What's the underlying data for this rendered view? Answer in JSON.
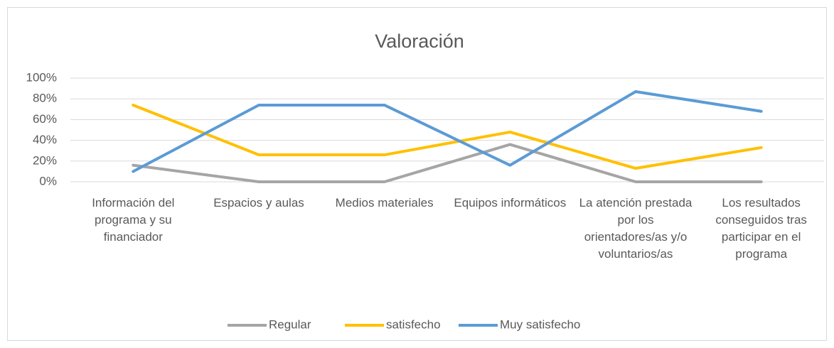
{
  "chart_data": {
    "type": "line",
    "title": "Valoración",
    "categories": [
      "Información del programa y su financiador",
      "Espacios y aulas",
      "Medios materiales",
      "Equipos informáticos",
      "La atención prestada por los orientadores/as y/o voluntarios/as",
      "Los resultados conseguidos tras participar en el programa"
    ],
    "series": [
      {
        "name": "Regular",
        "color": "#a5a5a5",
        "values": [
          16,
          0,
          0,
          36,
          0,
          0
        ]
      },
      {
        "name": "satisfecho",
        "color": "#ffc000",
        "values": [
          74,
          26,
          26,
          48,
          13,
          33
        ]
      },
      {
        "name": "Muy satisfecho",
        "color": "#5b9bd5",
        "values": [
          10,
          74,
          74,
          16,
          87,
          68
        ]
      }
    ],
    "ylim": [
      0,
      100
    ],
    "yticks": [
      {
        "value": 0,
        "label": "0%"
      },
      {
        "value": 20,
        "label": "20%"
      },
      {
        "value": 40,
        "label": "40%"
      },
      {
        "value": 60,
        "label": "60%"
      },
      {
        "value": 80,
        "label": "80%"
      },
      {
        "value": 100,
        "label": "100%"
      }
    ],
    "grid": true,
    "legend": "bottom"
  }
}
